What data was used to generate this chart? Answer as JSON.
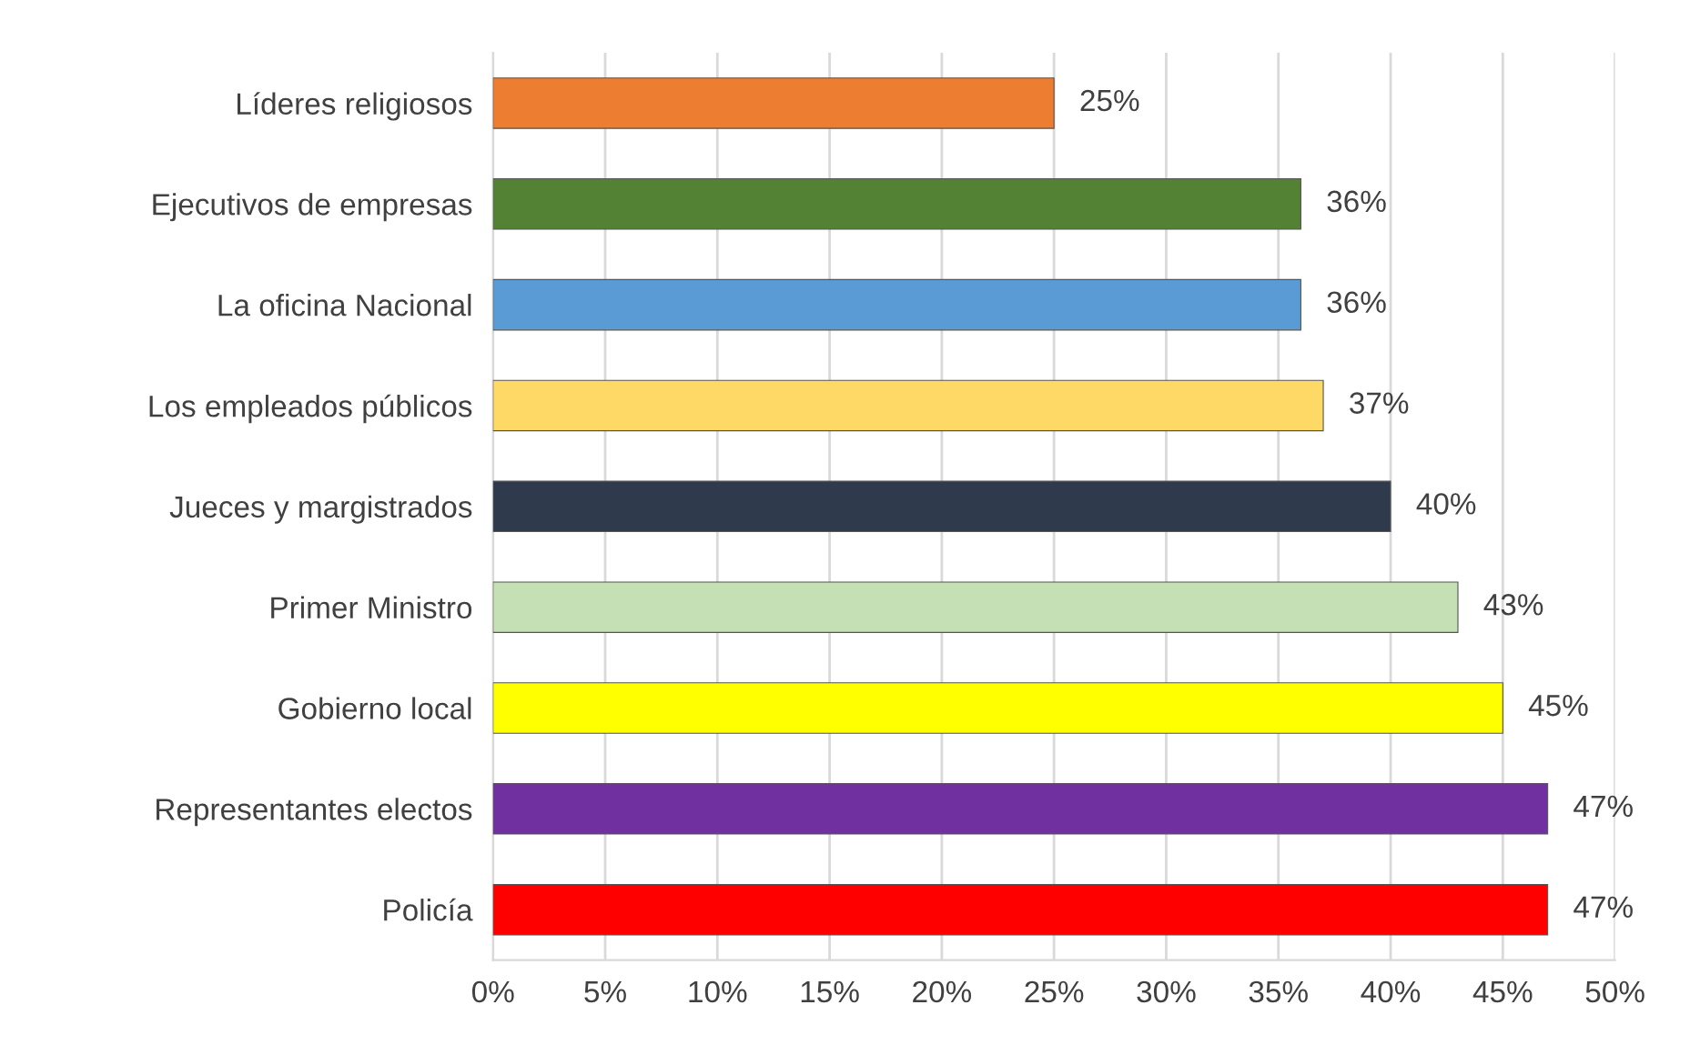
{
  "chart_data": {
    "type": "bar",
    "orientation": "horizontal",
    "categories": [
      "Líderes religiosos",
      "Ejecutivos de empresas",
      "La oficina Nacional",
      "Los empleados públicos",
      "Jueces y margistrados",
      "Primer Ministro",
      "Gobierno local",
      "Representantes electos",
      "Policía"
    ],
    "values": [
      25,
      36,
      36,
      37,
      40,
      43,
      45,
      47,
      47
    ],
    "colors": [
      "#ed7d31",
      "#548235",
      "#5b9bd5",
      "#ffd966",
      "#2f3b4c",
      "#c5e0b4",
      "#ffff00",
      "#7030a0",
      "#ff0000"
    ],
    "value_labels": [
      "25%",
      "36%",
      "36%",
      "37%",
      "40%",
      "43%",
      "45%",
      "47%",
      "47%"
    ],
    "xlim": [
      0,
      50
    ],
    "xticks": [
      {
        "value": 0,
        "label": "0%"
      },
      {
        "value": 5,
        "label": "5%"
      },
      {
        "value": 10,
        "label": "10%"
      },
      {
        "value": 15,
        "label": "15%"
      },
      {
        "value": 20,
        "label": "20%"
      },
      {
        "value": 25,
        "label": "25%"
      },
      {
        "value": 30,
        "label": "30%"
      },
      {
        "value": 35,
        "label": "35%"
      },
      {
        "value": 40,
        "label": "40%"
      },
      {
        "value": 45,
        "label": "45%"
      },
      {
        "value": 50,
        "label": "50%"
      }
    ],
    "grid": "x",
    "legend": false
  }
}
